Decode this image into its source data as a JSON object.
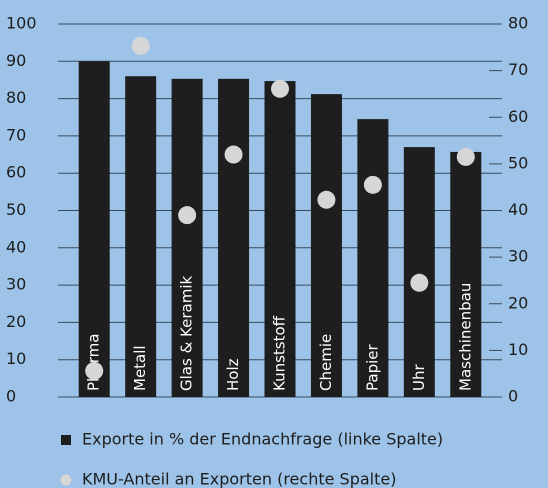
{
  "chart_data": {
    "type": "bar",
    "categories": [
      "Pharma",
      "Metall",
      "Glas & Keramik",
      "Holz",
      "Kunststoff",
      "Chemie",
      "Papier",
      "Uhr",
      "Maschinenbau"
    ],
    "series": [
      {
        "name": "Exporte in % der Endnachfrage (linke Spalte)",
        "type": "bar",
        "color": "#1e1e1e",
        "values": [
          90,
          86,
          85.3,
          85.3,
          84.7,
          81.2,
          74.5,
          67,
          65.7
        ]
      },
      {
        "name": "KMU-Anteil an Exporten (rechte Spalte)",
        "type": "scatter",
        "axis": "y2",
        "color": "#d6d6d6",
        "values": [
          5.6,
          75.3,
          39,
          52,
          66.1,
          42.3,
          45.5,
          24.5,
          51.5
        ]
      }
    ],
    "ylim": [
      0,
      100
    ],
    "yticks": [
      0,
      10,
      20,
      30,
      40,
      50,
      60,
      70,
      80,
      90,
      100
    ],
    "y2lim": [
      0,
      80
    ],
    "y2ticks": [
      0,
      10,
      20,
      30,
      40,
      50,
      60,
      70,
      80
    ],
    "grid": true,
    "legend": "bottom"
  }
}
